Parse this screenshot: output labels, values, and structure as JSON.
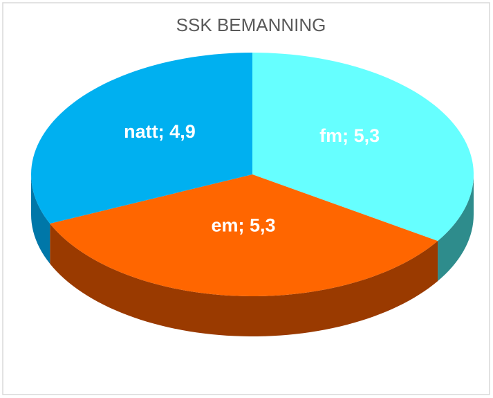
{
  "chart_data": {
    "type": "pie",
    "title": "SSK BEMANNING",
    "categories": [
      "fm",
      "em",
      "natt"
    ],
    "values": [
      5.3,
      5.3,
      4.9
    ],
    "value_labels": [
      "5,3",
      "5,3",
      "4,9"
    ],
    "label_separator": "; ",
    "colors": [
      "#66FFFF",
      "#FF6600",
      "#00B0F0"
    ],
    "side_colors": [
      "#2E8C8C",
      "#9A3A00",
      "#0077A8"
    ],
    "start_angle": 0,
    "direction": "clockwise",
    "three_d": true
  }
}
